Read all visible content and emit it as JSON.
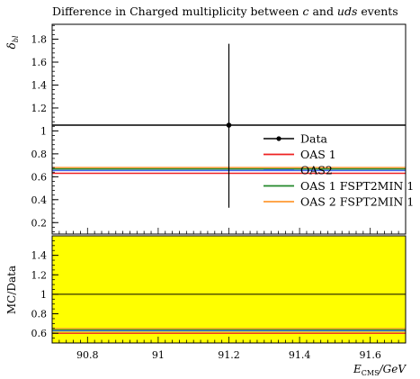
{
  "chart_data": {
    "type": "line",
    "title": "Difference in Charged multiplicity between c and uds events",
    "title_parts": {
      "prefix": "Difference in Charged multiplicity between ",
      "italic1": "c",
      "middle": " and ",
      "italic2": "uds",
      "suffix": " events"
    },
    "ylabel_main": "δbl",
    "ylabel_main_parts": {
      "base": "δ",
      "sub": "bl"
    },
    "ylabel_ratio": "MC/Data",
    "xlabel": "E_CMS/GeV",
    "xlabel_parts": {
      "base": "E",
      "sub": "CMS",
      "suffix": "/GeV"
    },
    "xlim": [
      90.7,
      91.7
    ],
    "ylim_main": [
      0.1,
      1.93
    ],
    "ylim_ratio": [
      0.5,
      1.6
    ],
    "x_ticks": [
      90.8,
      91.0,
      91.2,
      91.4,
      91.6
    ],
    "x_tick_labels": [
      "90.8",
      "91",
      "91.2",
      "91.4",
      "91.6"
    ],
    "y_ticks_main": [
      0.2,
      0.4,
      0.6,
      0.8,
      1.0,
      1.2,
      1.4,
      1.6,
      1.8
    ],
    "y_tick_labels_main": [
      "0.2",
      "0.4",
      "0.6",
      "0.8",
      "1",
      "1.2",
      "1.4",
      "1.6",
      "1.8"
    ],
    "y_ticks_ratio": [
      0.6,
      0.8,
      1.0,
      1.2,
      1.4
    ],
    "y_tick_labels_ratio": [
      "0.6",
      "0.8",
      "1",
      "1.2",
      "1.4"
    ],
    "data": {
      "name": "Data",
      "x": 91.2,
      "y": 1.05,
      "y_err_low": 0.72,
      "y_err_high": 0.71,
      "color": "#000000"
    },
    "series": [
      {
        "name": "OAS 1",
        "y": 0.63,
        "color": "#ee2222"
      },
      {
        "name": "OAS2",
        "y": 0.655,
        "color": "#4466ee"
      },
      {
        "name": "OAS 1 FSPT2MIN 1",
        "y": 0.668,
        "color": "#22882a"
      },
      {
        "name": "OAS 2 FSPT2MIN 1",
        "y": 0.68,
        "color": "#ff9933"
      }
    ],
    "ratio": {
      "band": [
        0.5,
        1.6
      ],
      "band_color": "#ffff00",
      "reference": 1.0,
      "series_values": [
        0.6,
        0.624,
        0.636,
        0.648
      ]
    },
    "legend_position": "center-right",
    "grid": false
  }
}
